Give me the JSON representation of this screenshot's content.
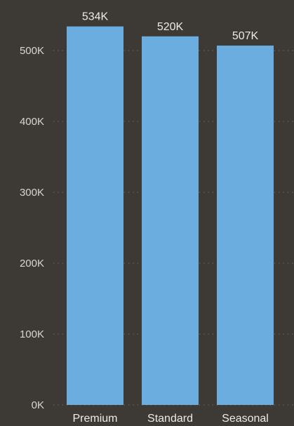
{
  "chart_data": {
    "type": "bar",
    "categories": [
      "Premium",
      "Standard",
      "Seasonal"
    ],
    "values": [
      534000,
      520000,
      507000
    ],
    "data_labels": [
      "534K",
      "520K",
      "507K"
    ],
    "ylim": [
      0,
      500000
    ],
    "yticks": [
      0,
      100000,
      200000,
      300000,
      400000,
      500000
    ],
    "ytick_labels": [
      "0K",
      "100K",
      "200K",
      "300K",
      "400K",
      "500K"
    ],
    "grid": true,
    "legend": "none",
    "colors": {
      "bar": "#6cade0",
      "background": "#3d3a36",
      "grid": "#6c6862",
      "text": "#eeebe5"
    }
  }
}
